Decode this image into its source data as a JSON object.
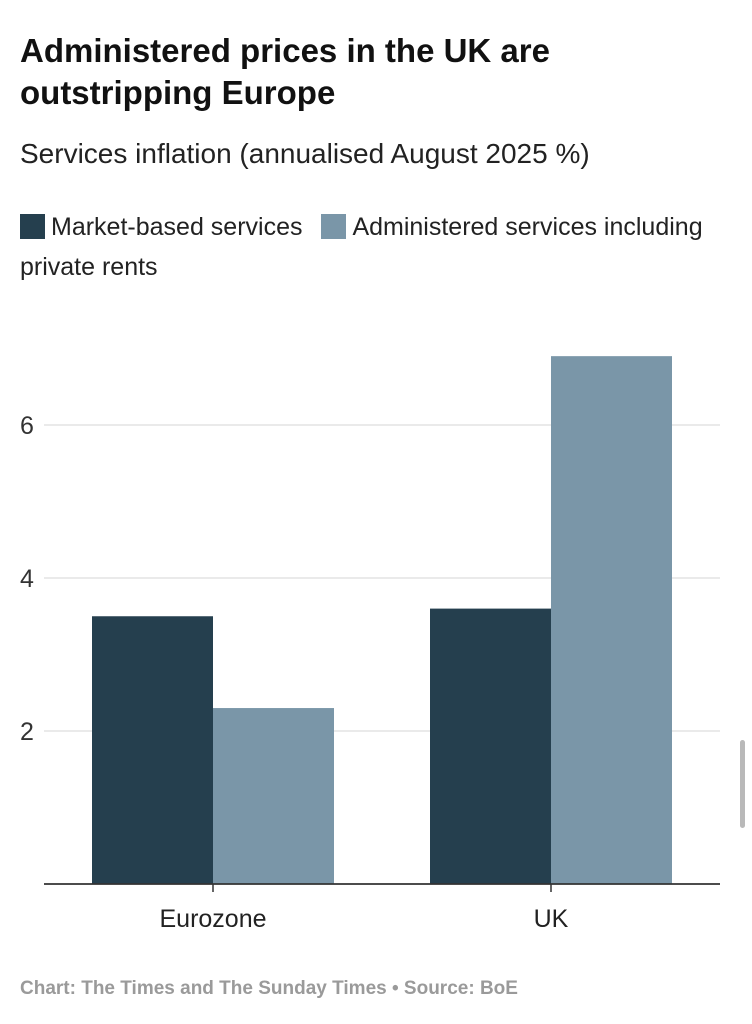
{
  "chart_data": {
    "type": "bar",
    "title": "Administered prices in the UK are outstripping Europe",
    "subtitle": "Services inflation (annualised August 2025 %)",
    "categories": [
      "Eurozone",
      "UK"
    ],
    "series": [
      {
        "name": "Market-based services",
        "values": [
          3.5,
          3.6
        ],
        "color": "#253f4e"
      },
      {
        "name": "Administered services including private rents",
        "values": [
          2.3,
          6.9
        ],
        "color": "#7a96a8"
      }
    ],
    "yticks": [
      2,
      4,
      6
    ],
    "ylim": [
      0,
      7.5
    ],
    "grid": true,
    "legend_position": "top",
    "source": "Chart: The Times and The Sunday Times • Source: BoE"
  }
}
